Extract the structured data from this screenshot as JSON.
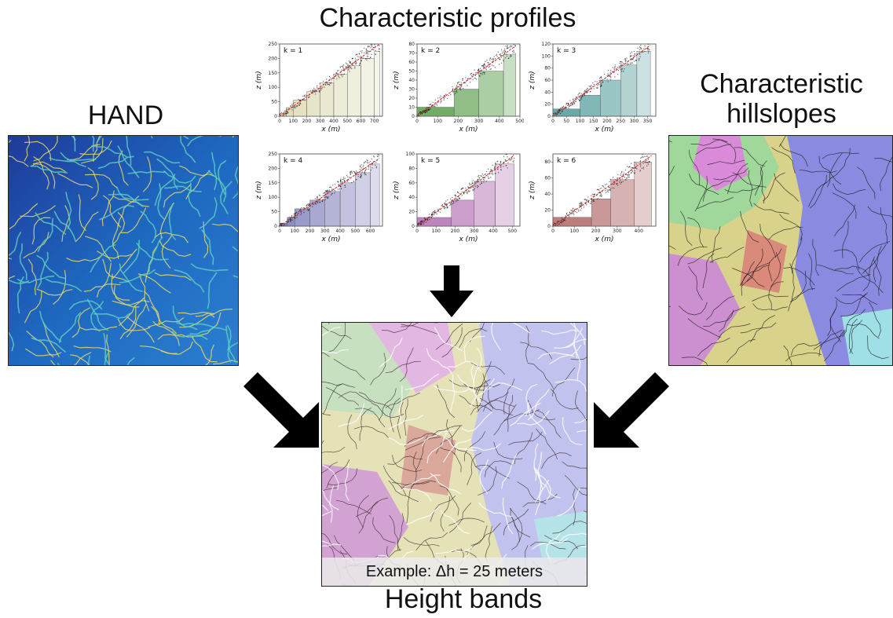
{
  "titles": {
    "profiles": "Characteristic profiles",
    "hand": "HAND",
    "hillslopes": "Characteristic hillslopes",
    "bands": "Height bands"
  },
  "caption": "Example: Δh = 25 meters",
  "axis_labels": {
    "x": "x (m)",
    "z": "z (m)"
  },
  "chart_data": [
    {
      "type": "scatter",
      "label": "k = 1",
      "xlabel": "x (m)",
      "ylabel": "z (m)",
      "xlim": [
        0,
        760
      ],
      "ylim": [
        0,
        250
      ],
      "xticks": [
        0,
        100,
        200,
        300,
        400,
        500,
        600,
        700
      ],
      "yticks": [
        0,
        50,
        100,
        150,
        200,
        250
      ],
      "color": "#d8d5a8",
      "bars": [
        [
          0,
          50,
          10
        ],
        [
          50,
          100,
          30
        ],
        [
          100,
          200,
          55
        ],
        [
          200,
          300,
          85
        ],
        [
          300,
          400,
          115
        ],
        [
          400,
          500,
          145
        ],
        [
          500,
          600,
          175
        ],
        [
          600,
          700,
          200
        ],
        [
          700,
          740,
          225
        ]
      ],
      "line": [
        [
          0,
          0
        ],
        [
          740,
          250
        ]
      ]
    },
    {
      "type": "scatter",
      "label": "k = 2",
      "xlabel": "x (m)",
      "ylabel": "z (m)",
      "xlim": [
        0,
        500
      ],
      "ylim": [
        0,
        80
      ],
      "xticks": [
        0,
        100,
        200,
        300,
        400,
        500
      ],
      "yticks": [
        0,
        10,
        20,
        30,
        40,
        50,
        60,
        70,
        80
      ],
      "color": "#5a9e4c",
      "bars": [
        [
          0,
          180,
          10
        ],
        [
          180,
          300,
          30
        ],
        [
          300,
          420,
          50
        ],
        [
          420,
          480,
          68
        ]
      ],
      "line": [
        [
          0,
          0
        ],
        [
          480,
          78
        ]
      ]
    },
    {
      "type": "scatter",
      "label": "k = 3",
      "xlabel": "x (m)",
      "ylabel": "z (m)",
      "xlim": [
        0,
        380
      ],
      "ylim": [
        0,
        120
      ],
      "xticks": [
        0,
        50,
        100,
        150,
        200,
        250,
        300,
        350
      ],
      "yticks": [
        0,
        20,
        40,
        60,
        80,
        100,
        120
      ],
      "color": "#4f9a9a",
      "bars": [
        [
          0,
          100,
          12
        ],
        [
          100,
          175,
          35
        ],
        [
          175,
          250,
          60
        ],
        [
          250,
          310,
          85
        ],
        [
          310,
          360,
          108
        ]
      ],
      "line": [
        [
          0,
          0
        ],
        [
          360,
          118
        ]
      ]
    },
    {
      "type": "scatter",
      "label": "k = 4",
      "xlabel": "x (m)",
      "ylabel": "z (m)",
      "xlim": [
        0,
        680
      ],
      "ylim": [
        0,
        250
      ],
      "xticks": [
        0,
        100,
        200,
        300,
        400,
        500,
        600
      ],
      "yticks": [
        0,
        50,
        100,
        150,
        200,
        250
      ],
      "color": "#6b6bb0",
      "bars": [
        [
          0,
          50,
          10
        ],
        [
          50,
          100,
          30
        ],
        [
          100,
          200,
          60
        ],
        [
          200,
          300,
          90
        ],
        [
          300,
          400,
          120
        ],
        [
          400,
          500,
          150
        ],
        [
          500,
          600,
          185
        ],
        [
          600,
          660,
          215
        ]
      ],
      "line": [
        [
          0,
          0
        ],
        [
          660,
          235
        ]
      ]
    },
    {
      "type": "scatter",
      "label": "k = 5",
      "xlabel": "x (m)",
      "ylabel": "z (m)",
      "xlim": [
        0,
        540
      ],
      "ylim": [
        0,
        100
      ],
      "xticks": [
        0,
        100,
        200,
        300,
        400,
        500
      ],
      "yticks": [
        0,
        20,
        40,
        60,
        80,
        100
      ],
      "color": "#b36fb3",
      "bars": [
        [
          0,
          180,
          12
        ],
        [
          180,
          300,
          36
        ],
        [
          300,
          410,
          62
        ],
        [
          410,
          510,
          86
        ]
      ],
      "line": [
        [
          0,
          0
        ],
        [
          510,
          98
        ]
      ]
    },
    {
      "type": "scatter",
      "label": "k = 6",
      "xlabel": "x (m)",
      "ylabel": "z (m)",
      "xlim": [
        0,
        480
      ],
      "ylim": [
        0,
        90
      ],
      "xticks": [
        0,
        100,
        200,
        300,
        400
      ],
      "yticks": [
        0,
        20,
        40,
        60,
        80
      ],
      "color": "#b06666",
      "bars": [
        [
          0,
          180,
          11
        ],
        [
          180,
          270,
          34
        ],
        [
          270,
          380,
          58
        ],
        [
          380,
          460,
          80
        ]
      ],
      "line": [
        [
          0,
          0
        ],
        [
          460,
          88
        ]
      ]
    }
  ]
}
